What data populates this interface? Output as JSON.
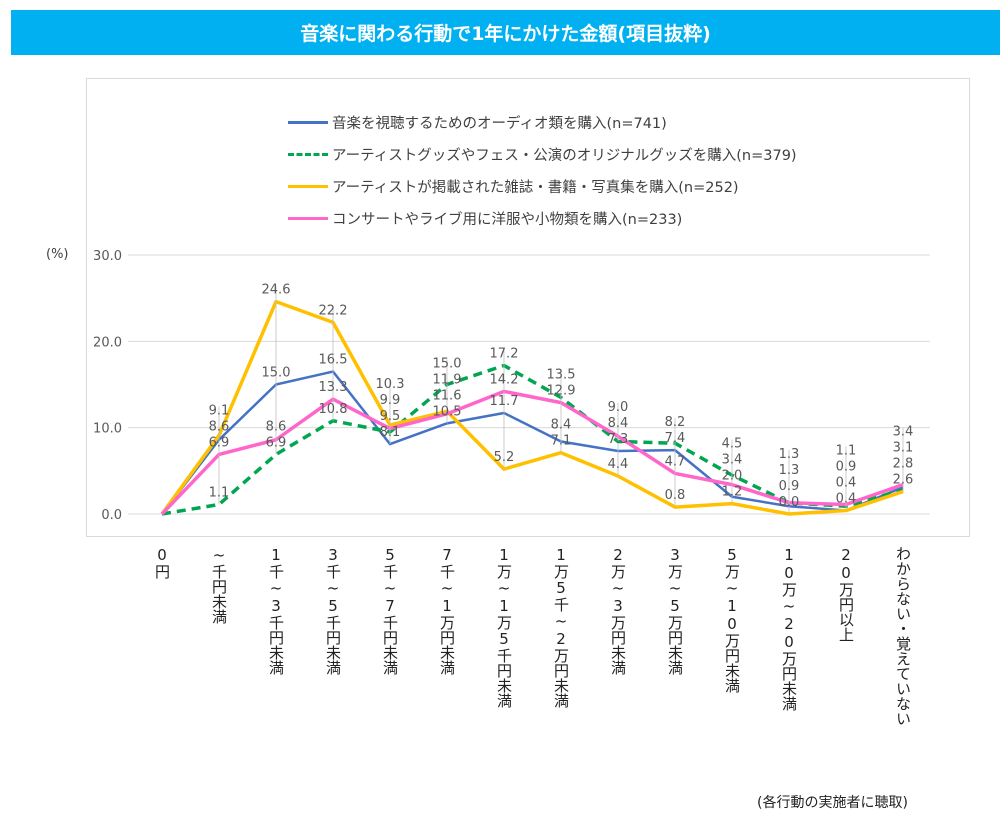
{
  "title": "音楽に関わる行動で1年にかけた金額(項目抜粋)",
  "unit_label": "(%)",
  "note": "(各行動の実施者に聴取)",
  "chart_data": {
    "type": "line",
    "title": "音楽に関わる行動で1年にかけた金額(項目抜粋)",
    "xlabel": "",
    "ylabel": "(%)",
    "ylim": [
      0,
      30
    ],
    "yticks": [
      "0.0",
      "10.0",
      "20.0",
      "30.0"
    ],
    "grid": true,
    "legend_position": "top",
    "categories": [
      "0円",
      "~千円未満",
      "1千~3千円未満",
      "3千~5千円未満",
      "5千~7千円未満",
      "7千~1万円未満",
      "1万~1万5千円未満",
      "1万5千~2万円未満",
      "2万~3万円未満",
      "3万~5万円未満",
      "5万~10万円未満",
      "10万~20万円未満",
      "20万円以上",
      "わからない・覚えていない"
    ],
    "category_labels_vertical": [
      "0円",
      "~千円未満",
      "1千~3千円未満",
      "3千~5千円未満",
      "5千~7千円未満",
      "7千~1万円未満",
      "1万~1万5千円未満",
      "1万5千~2万円未満",
      "2万~3万円未満",
      "3万~5万円未満",
      "5万~10万円未満",
      "10万~20万円未満",
      "20万円以上",
      "わからない・覚えていない"
    ],
    "series": [
      {
        "name": "音楽を視聴するためのオーディオ類を購入(n=741)",
        "color": "#4472c4",
        "dash": false,
        "values": [
          0.0,
          8.6,
          15.0,
          16.5,
          8.1,
          10.5,
          11.7,
          8.4,
          7.3,
          7.4,
          2.0,
          0.9,
          0.4,
          3.1
        ]
      },
      {
        "name": "アーティストグッズやフェス・公演のオリジナルグッズを購入(n=379)",
        "color": "#00a650",
        "dash": true,
        "values": [
          0.0,
          1.1,
          6.9,
          10.8,
          9.5,
          15.0,
          17.2,
          13.5,
          8.4,
          8.2,
          4.5,
          1.3,
          0.9,
          2.8
        ]
      },
      {
        "name": "アーティストが掲載された雑誌・書籍・写真集を購入(n=252)",
        "color": "#ffc000",
        "dash": false,
        "values": [
          0.0,
          9.1,
          24.6,
          22.2,
          10.3,
          11.9,
          5.2,
          7.1,
          4.4,
          0.8,
          1.2,
          0.0,
          0.4,
          2.6
        ]
      },
      {
        "name": "コンサートやライブ用に洋服や小物類を購入(n=233)",
        "color": "#ff66cc",
        "dash": false,
        "values": [
          0.0,
          6.9,
          8.6,
          13.3,
          9.9,
          11.6,
          14.2,
          12.9,
          9.0,
          4.7,
          3.4,
          1.3,
          1.1,
          3.4
        ]
      }
    ],
    "data_label_stacks": [
      [],
      [
        "9.1",
        "8.6",
        "6.9",
        "1.1"
      ],
      [
        "24.6",
        "15.0",
        "8.6",
        "6.9"
      ],
      [
        "22.2",
        "16.5",
        "13.3",
        "10.8"
      ],
      [
        "10.3",
        "9.9",
        "9.5",
        "8.1"
      ],
      [
        "15.0",
        "11.9",
        "11.6",
        "10.5"
      ],
      [
        "17.2",
        "14.2",
        "11.7",
        "5.2"
      ],
      [
        "13.5",
        "12.9",
        "8.4",
        "7.1"
      ],
      [
        "9.0",
        "8.4",
        "7.3",
        "4.4"
      ],
      [
        "8.2",
        "7.4",
        "4.7",
        "0.8"
      ],
      [
        "4.5",
        "3.4",
        "2.0",
        "1.2"
      ],
      [
        "1.3",
        "1.3",
        "0.9",
        "0.0"
      ],
      [
        "1.1",
        "0.9",
        "0.4",
        "0.4"
      ],
      [
        "3.4",
        "3.1",
        "2.8",
        "2.6"
      ]
    ]
  }
}
